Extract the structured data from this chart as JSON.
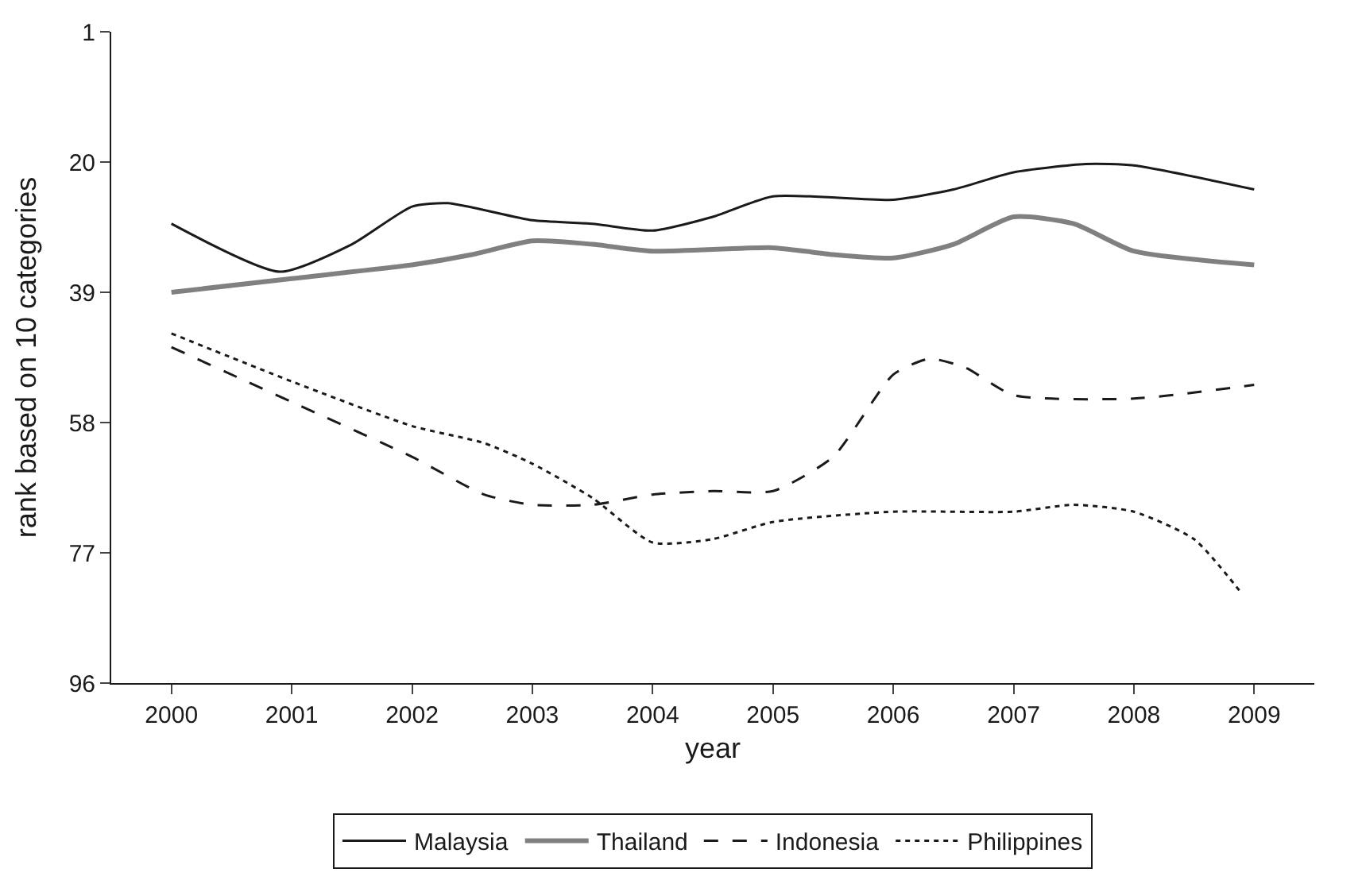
{
  "chart_data": {
    "type": "line",
    "xlabel": "year",
    "ylabel": "rank based on 10 categories",
    "xlim": [
      1999.5,
      2009.5
    ],
    "xticks": [
      2000,
      2001,
      2002,
      2003,
      2004,
      2005,
      2006,
      2007,
      2008,
      2009
    ],
    "ylim": [
      96,
      1
    ],
    "yticks": [
      1,
      20,
      39,
      58,
      77,
      96
    ],
    "grid": false,
    "legend": "bottom",
    "marker": "none",
    "series": [
      {
        "name": "Malaysia",
        "color": "#1a1a1a",
        "line_style": "solid",
        "x": [
          2000,
          2000.9,
          2001.5,
          2002,
          2002.3,
          2003,
          2003.5,
          2004,
          2004.5,
          2005,
          2006,
          2006.5,
          2007,
          2007.6,
          2008,
          2009
        ],
        "values": [
          29,
          36,
          32,
          26.5,
          26,
          28.5,
          29,
          30,
          28,
          25,
          25.5,
          24,
          21.5,
          20.3,
          20.5,
          24
        ]
      },
      {
        "name": "Thailand",
        "color": "#808080",
        "line_style": "solid",
        "x": [
          2000,
          2001,
          2002,
          2002.5,
          2003,
          2003.5,
          2004,
          2005,
          2005.5,
          2006,
          2006.5,
          2007,
          2007.5,
          2008,
          2009
        ],
        "values": [
          39,
          37,
          35,
          33.5,
          31.5,
          32,
          33,
          32.5,
          33.5,
          34,
          32,
          28,
          29,
          33,
          35
        ]
      },
      {
        "name": "Indonesia",
        "color": "#1a1a1a",
        "line_style": "dashed",
        "x": [
          2000,
          2001,
          2002,
          2002.6,
          2003,
          2003.5,
          2004,
          2004.5,
          2005,
          2005.5,
          2006,
          2006.3,
          2006.6,
          2007,
          2008,
          2009
        ],
        "values": [
          47,
          55,
          63,
          68.5,
          70,
          70,
          68.5,
          68,
          68,
          63,
          51,
          48.7,
          50,
          54,
          54.5,
          52.5
        ]
      },
      {
        "name": "Philippines",
        "color": "#1a1a1a",
        "line_style": "dotted",
        "x": [
          2000,
          2001,
          2002,
          2002.6,
          2003,
          2003.5,
          2004,
          2004.5,
          2005,
          2006,
          2007,
          2007.5,
          2008,
          2008.5,
          2008.9
        ],
        "values": [
          45,
          52,
          58.5,
          61,
          64,
          69,
          75.5,
          75,
          72.5,
          71,
          71,
          70,
          71,
          75,
          83
        ]
      }
    ]
  }
}
